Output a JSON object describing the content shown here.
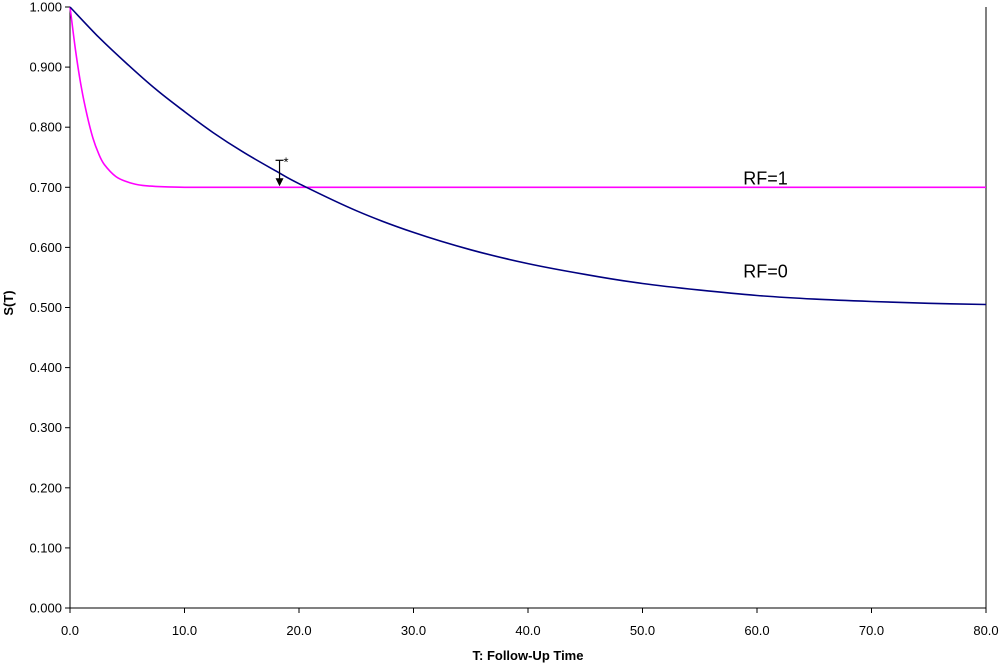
{
  "chart_data": {
    "type": "line",
    "title": "",
    "xlabel": "T:  Follow-Up Time",
    "ylabel": "S(T)",
    "xlim": [
      0,
      80
    ],
    "ylim": [
      0,
      1
    ],
    "x_ticks": [
      "0.0",
      "10.0",
      "20.0",
      "30.0",
      "40.0",
      "50.0",
      "60.0",
      "70.0",
      "80.0"
    ],
    "y_ticks": [
      "0.000",
      "0.100",
      "0.200",
      "0.300",
      "0.400",
      "0.500",
      "0.600",
      "0.700",
      "0.800",
      "0.900",
      "1.000"
    ],
    "grid": false,
    "legend": "none",
    "series": [
      {
        "name": "RF=1",
        "color": "#ff00ff",
        "x": [
          0,
          0.5,
          1,
          1.5,
          2,
          2.5,
          3,
          4,
          5,
          6,
          7,
          8,
          10,
          12,
          15,
          20,
          30,
          40,
          50,
          60,
          70,
          80
        ],
        "values": [
          1.0,
          0.926,
          0.865,
          0.819,
          0.782,
          0.756,
          0.738,
          0.718,
          0.709,
          0.704,
          0.702,
          0.701,
          0.7,
          0.7,
          0.7,
          0.7,
          0.7,
          0.7,
          0.7,
          0.7,
          0.7,
          0.7
        ]
      },
      {
        "name": "RF=0",
        "color": "#000080",
        "x": [
          0,
          2.5,
          5,
          7.5,
          10,
          12.5,
          15,
          18,
          20,
          25,
          30,
          35,
          40,
          45,
          50,
          55,
          60,
          65,
          70,
          75,
          80
        ],
        "values": [
          1.0,
          0.95,
          0.905,
          0.863,
          0.826,
          0.791,
          0.76,
          0.727,
          0.706,
          0.661,
          0.625,
          0.596,
          0.573,
          0.555,
          0.54,
          0.529,
          0.52,
          0.514,
          0.51,
          0.507,
          0.505
        ]
      }
    ],
    "annotations": [
      {
        "text": "T*",
        "x": 18.3,
        "y": 0.7
      }
    ]
  }
}
